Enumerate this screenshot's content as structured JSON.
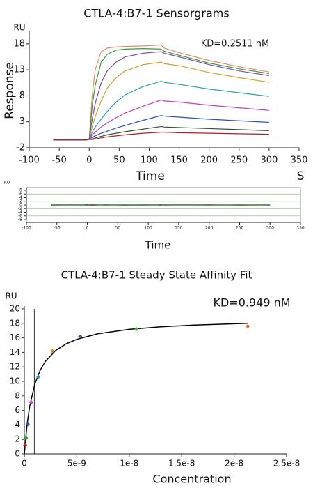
{
  "chart_data": [
    {
      "type": "line",
      "title": "CTLA-4:B7-1 Sensorgrams",
      "y_label": "Response",
      "y_unit": "RU",
      "x_label": "Time",
      "x_unit": "S",
      "annotation": "KD=0.2511 nM",
      "x": [
        -60,
        -5,
        0,
        5,
        10,
        20,
        30,
        45,
        60,
        90,
        120,
        125,
        150,
        200,
        250,
        300
      ],
      "series": [
        {
          "color": "#e8896a",
          "values": [
            -0.5,
            -0.5,
            -0.3,
            8,
            13,
            16.5,
            17.2,
            17.4,
            17.5,
            17.6,
            17.8,
            17.2,
            16.3,
            14.8,
            13.6,
            12.6
          ]
        },
        {
          "color": "#3a9a3a",
          "values": [
            -0.5,
            -0.5,
            -0.3,
            6,
            10,
            14.5,
            16,
            16.8,
            17,
            17.1,
            17,
            16.6,
            15.8,
            14.3,
            13.2,
            12.3
          ]
        },
        {
          "color": "#7a4ab0",
          "values": [
            -0.5,
            -0.5,
            -0.3,
            3.5,
            6.5,
            10.5,
            12.8,
            14.5,
            15.5,
            16.2,
            16.5,
            16.2,
            15.5,
            14,
            12.8,
            11.9
          ]
        },
        {
          "color": "#d4a030",
          "values": [
            -0.5,
            -0.5,
            -0.3,
            2,
            4,
            7,
            9.5,
            11.5,
            12.8,
            14,
            14.5,
            14.2,
            13.8,
            12.5,
            11.5,
            10.6
          ]
        },
        {
          "color": "#2aa0b0",
          "values": [
            -0.5,
            -0.5,
            -0.3,
            1,
            2,
            3.5,
            5,
            6.8,
            8.2,
            9.8,
            10.8,
            10.6,
            10.2,
            9.3,
            8.6,
            7.9
          ]
        },
        {
          "color": "#c040c0",
          "values": [
            -0.5,
            -0.5,
            -0.3,
            0.5,
            1,
            2,
            2.8,
            3.8,
            4.7,
            6,
            7.2,
            7,
            6.8,
            6.2,
            5.7,
            5.2
          ]
        },
        {
          "color": "#3050c0",
          "values": [
            -0.5,
            -0.5,
            -0.3,
            0,
            0.3,
            0.8,
            1.2,
            1.8,
            2.3,
            3.3,
            4.2,
            4.1,
            3.9,
            3.5,
            3.2,
            2.9
          ]
        },
        {
          "color": "#305030",
          "values": [
            -0.5,
            -0.5,
            -0.3,
            -0.3,
            -0.1,
            0.2,
            0.5,
            0.8,
            1.1,
            1.6,
            2.1,
            2,
            1.9,
            1.7,
            1.5,
            1.3
          ]
        },
        {
          "color": "#b02020",
          "values": [
            -0.5,
            -0.5,
            -0.4,
            -0.4,
            -0.3,
            -0.1,
            0.1,
            0.3,
            0.5,
            0.8,
            1,
            1,
            0.9,
            0.8,
            0.7,
            0.6
          ]
        }
      ],
      "xlim": [
        -100,
        350
      ],
      "ylim": [
        -2,
        20
      ],
      "xticks": [
        -100,
        -50,
        0,
        50,
        100,
        150,
        200,
        250,
        300,
        350
      ],
      "yticks": [
        -2,
        3,
        8,
        13,
        18
      ]
    },
    {
      "type": "line",
      "y_unit": "RU",
      "x_label": "Time",
      "x": [
        -60,
        -5,
        0,
        5,
        30,
        60,
        90,
        115,
        120,
        125,
        150,
        200,
        250,
        300
      ],
      "series": [
        {
          "color": "#b02020",
          "values": [
            0,
            0.1,
            0.3,
            -0.2,
            0.1,
            -0.1,
            0,
            0.1,
            0.3,
            -0.1,
            0,
            0.1,
            -0.1,
            0
          ]
        },
        {
          "color": "#7a4ab0",
          "values": [
            -0.1,
            0,
            -0.3,
            0.2,
            -0.1,
            0.1,
            -0.1,
            0,
            -0.2,
            0.1,
            0,
            -0.1,
            0.1,
            -0.1
          ]
        },
        {
          "color": "#3a9a3a",
          "values": [
            0.1,
            0,
            0.2,
            0.1,
            0,
            0,
            0.1,
            0,
            0.4,
            0,
            0.1,
            0,
            0,
            0.1
          ]
        }
      ],
      "reference_lines": {
        "color": "#8cc08c",
        "values": [
          6,
          2,
          -2,
          -6
        ]
      },
      "xlim": [
        -100,
        350
      ],
      "ylim": [
        -8,
        8
      ],
      "xticks": [
        -100,
        -50,
        0,
        50,
        100,
        150,
        200,
        250,
        300,
        350
      ],
      "yticks": [
        -8,
        -6,
        -4,
        -2,
        0,
        2,
        4,
        6,
        8
      ]
    },
    {
      "type": "scatter",
      "title": "CTLA-4:B7-1 Steady State Affinity Fit",
      "y_unit": "RU",
      "x_label": "Concentration",
      "annotation": "KD=0.949 nM",
      "x": [
        8.3e-11,
        1.67e-10,
        3.33e-10,
        6.67e-10,
        1.33e-09,
        2.67e-09,
        5.33e-09,
        1.07e-08,
        2.13e-08
      ],
      "values": [
        1.2,
        2.2,
        4.1,
        7.1,
        10.6,
        14.2,
        16.2,
        17.2,
        17.6
      ],
      "colors": [
        "#c02020",
        "#30a030",
        "#3050c0",
        "#c040c0",
        "#2aa0b0",
        "#e08a30",
        "#7a3aa0",
        "#50b050",
        "#e86a3a"
      ],
      "fit": {
        "color": "#000000",
        "x": [
          0,
          2.5e-10,
          5e-10,
          1e-09,
          1.5e-09,
          2e-09,
          3e-09,
          4e-09,
          5e-09,
          7e-09,
          1e-08,
          1.3e-08,
          1.6e-08,
          2.13e-08
        ],
        "values": [
          0,
          3.92,
          6.49,
          9.65,
          11.51,
          12.75,
          14.28,
          15.19,
          15.8,
          16.56,
          17.17,
          17.52,
          17.75,
          18
        ]
      },
      "kd_line": 9.49e-10,
      "xlim": [
        0,
        2.5e-08
      ],
      "ylim": [
        0,
        20
      ],
      "xticks": [
        0,
        5e-09,
        1e-08,
        1.5e-08,
        2e-08,
        2.5e-08
      ],
      "yticks": [
        0,
        2,
        4,
        6,
        8,
        10,
        12,
        14,
        16,
        18,
        20
      ]
    }
  ]
}
